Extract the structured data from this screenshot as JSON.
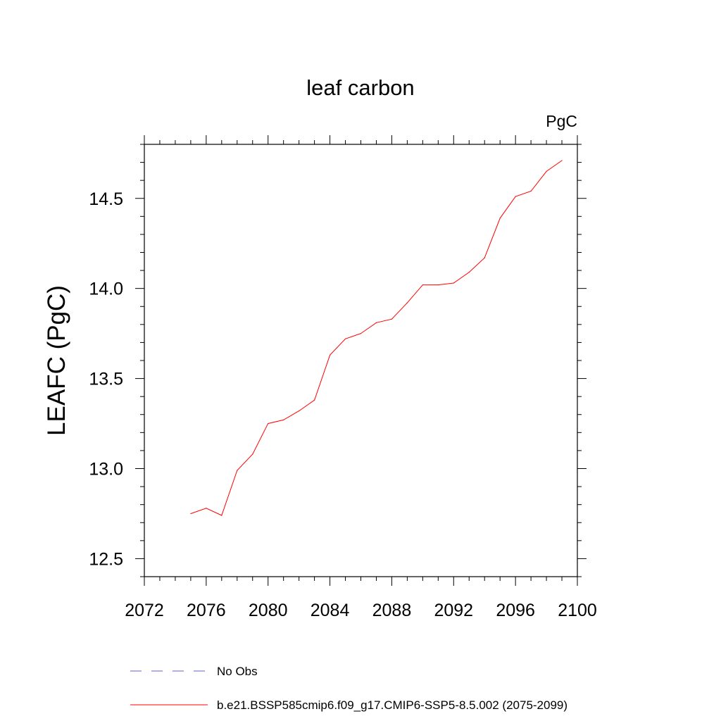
{
  "chart_data": {
    "type": "line",
    "title": "leaf carbon",
    "units": "PgC",
    "xlabel": "",
    "ylabel": "LEAFC  (PgC)",
    "xlim": [
      2072,
      2100
    ],
    "ylim": [
      12.4,
      14.8
    ],
    "x_ticks": [
      2072,
      2076,
      2080,
      2084,
      2088,
      2092,
      2096,
      2100
    ],
    "x_tick_labels": [
      "2072",
      "2076",
      "2080",
      "2084",
      "2088",
      "2092",
      "2096",
      "2100"
    ],
    "y_ticks": [
      12.5,
      13.0,
      13.5,
      14.0,
      14.5
    ],
    "y_tick_labels": [
      "12.5",
      "13.0",
      "13.5",
      "14.0",
      "14.5"
    ],
    "grid": false,
    "series": [
      {
        "name": "b.e21.BSSP585cmip6.f09_g17.CMIP6-SSP5-8.5.002 (2075-2099)",
        "color": "#ff0000",
        "x": [
          2075,
          2076,
          2077,
          2078,
          2079,
          2080,
          2081,
          2082,
          2083,
          2084,
          2085,
          2086,
          2087,
          2088,
          2089,
          2090,
          2091,
          2092,
          2093,
          2094,
          2095,
          2096,
          2097,
          2098,
          2099
        ],
        "y": [
          12.75,
          12.78,
          12.74,
          12.99,
          13.08,
          13.25,
          13.27,
          13.32,
          13.38,
          13.63,
          13.72,
          13.75,
          13.81,
          13.83,
          13.92,
          14.02,
          14.02,
          14.03,
          14.09,
          14.17,
          14.39,
          14.51,
          14.54,
          14.65,
          14.71
        ]
      }
    ],
    "legend": {
      "placement": "bottom",
      "entries": [
        {
          "label": "No Obs",
          "color": "#6060c0",
          "style": "dashed"
        },
        {
          "label": "b.e21.BSSP585cmip6.f09_g17.CMIP6-SSP5-8.5.002 (2075-2099)",
          "color": "#ff0000",
          "style": "solid"
        }
      ]
    }
  }
}
